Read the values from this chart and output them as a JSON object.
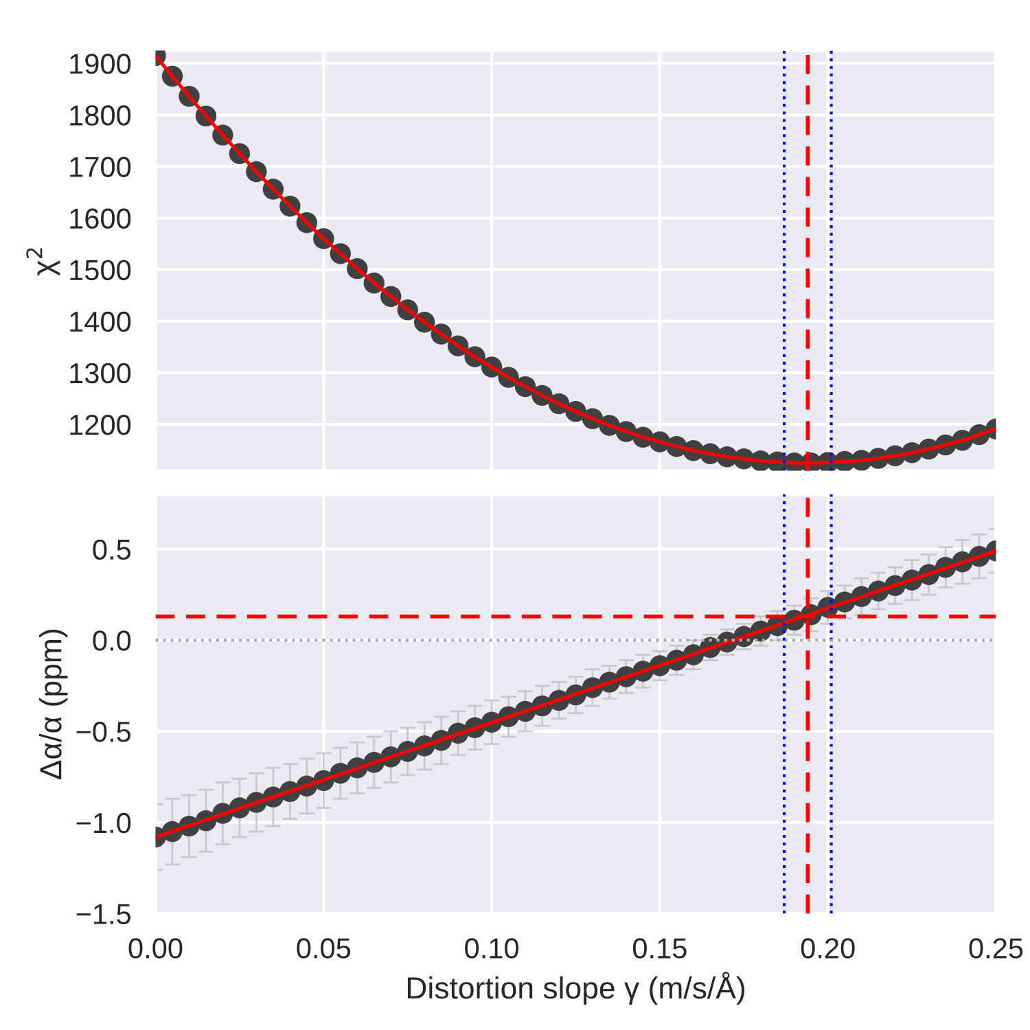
{
  "chart_data": [
    {
      "type": "scatter",
      "ylabel": "χ$^{2}$",
      "x": [
        0,
        0.005,
        0.01,
        0.015,
        0.02,
        0.025,
        0.03,
        0.035,
        0.04,
        0.045,
        0.05,
        0.055,
        0.06,
        0.065,
        0.07,
        0.075,
        0.08,
        0.085,
        0.09,
        0.095,
        0.1,
        0.105,
        0.11,
        0.115,
        0.12,
        0.125,
        0.13,
        0.135,
        0.14,
        0.145,
        0.15,
        0.155,
        0.16,
        0.165,
        0.17,
        0.175,
        0.18,
        0.185,
        0.19,
        0.195,
        0.2,
        0.205,
        0.21,
        0.215,
        0.22,
        0.225,
        0.23,
        0.235,
        0.24,
        0.245,
        0.25
      ],
      "series": [
        {
          "type": "scatter",
          "color": "#404040",
          "marker": "circle",
          "values": [
            1915,
            1875,
            1836,
            1798,
            1761,
            1725,
            1690,
            1656,
            1623,
            1591,
            1560,
            1531,
            1502,
            1474,
            1448,
            1422,
            1398,
            1375,
            1352,
            1331,
            1311,
            1291,
            1273,
            1256,
            1240,
            1225,
            1211,
            1198,
            1186,
            1175,
            1166,
            1157,
            1149,
            1143,
            1137,
            1133,
            1129,
            1127,
            1125,
            1125,
            1126,
            1128,
            1130,
            1134,
            1139,
            1145,
            1152,
            1160,
            1169,
            1180,
            1191
          ]
        },
        {
          "type": "line",
          "color": "#ff0000",
          "line_style": "solid",
          "values": [
            1915,
            1875,
            1836,
            1798,
            1761,
            1725,
            1690,
            1656,
            1623,
            1591,
            1560,
            1531,
            1502,
            1474,
            1448,
            1422,
            1398,
            1375,
            1352,
            1331,
            1311,
            1291,
            1273,
            1256,
            1240,
            1225,
            1211,
            1198,
            1186,
            1175,
            1166,
            1157,
            1149,
            1143,
            1137,
            1133,
            1129,
            1127,
            1125,
            1125,
            1126,
            1128,
            1130,
            1134,
            1139,
            1145,
            1152,
            1160,
            1169,
            1180,
            1191
          ]
        }
      ],
      "xlim": [
        0,
        0.25
      ],
      "xticks": [
        {
          "value": 0,
          "label": null
        },
        {
          "value": 0.05,
          "label": null
        },
        {
          "value": 0.1,
          "label": null
        },
        {
          "value": 0.15,
          "label": null
        },
        {
          "value": 0.2,
          "label": null
        },
        {
          "value": 0.25,
          "label": null
        }
      ],
      "ylim": [
        1110,
        1925
      ],
      "yticks": [
        1200,
        1300,
        1400,
        1500,
        1600,
        1700,
        1800,
        1900
      ],
      "tick_labels": "y",
      "grid": true,
      "ref_lines": [
        {
          "axis": "x",
          "value": 0.194,
          "color": "#ff0000",
          "line_style": "dashed"
        },
        {
          "axis": "x",
          "value": 0.187,
          "color": "#0000ff",
          "line_style": "dotted"
        },
        {
          "axis": "x",
          "value": 0.201,
          "color": "#0000ff",
          "line_style": "dotted"
        }
      ]
    },
    {
      "type": "scatter",
      "ylabel": "Δα/α (ppm)",
      "xlabel": "Distortion slope γ (m/s/Å)",
      "x": [
        0,
        0.005,
        0.01,
        0.015,
        0.02,
        0.025,
        0.03,
        0.035,
        0.04,
        0.045,
        0.05,
        0.055,
        0.06,
        0.065,
        0.07,
        0.075,
        0.08,
        0.085,
        0.09,
        0.095,
        0.1,
        0.105,
        0.11,
        0.115,
        0.12,
        0.125,
        0.13,
        0.135,
        0.14,
        0.145,
        0.15,
        0.155,
        0.16,
        0.165,
        0.17,
        0.175,
        0.18,
        0.185,
        0.19,
        0.195,
        0.2,
        0.205,
        0.21,
        0.215,
        0.22,
        0.225,
        0.23,
        0.235,
        0.24,
        0.245,
        0.25
      ],
      "series": [
        {
          "type": "scatter",
          "color": "#404040",
          "marker": "circle",
          "values": [
            -1.08,
            -1.05,
            -1.02,
            -0.99,
            -0.95,
            -0.92,
            -0.89,
            -0.86,
            -0.83,
            -0.8,
            -0.77,
            -0.73,
            -0.7,
            -0.67,
            -0.64,
            -0.61,
            -0.58,
            -0.55,
            -0.51,
            -0.48,
            -0.45,
            -0.42,
            -0.39,
            -0.36,
            -0.33,
            -0.3,
            -0.26,
            -0.23,
            -0.2,
            -0.17,
            -0.14,
            -0.11,
            -0.08,
            -0.04,
            -0.01,
            0.02,
            0.05,
            0.08,
            0.11,
            0.14,
            0.18,
            0.21,
            0.24,
            0.27,
            0.3,
            0.33,
            0.36,
            0.4,
            0.43,
            0.46,
            0.49
          ],
          "errors": [
            0.18,
            0.18,
            0.17,
            0.17,
            0.17,
            0.16,
            0.16,
            0.16,
            0.15,
            0.15,
            0.15,
            0.14,
            0.14,
            0.14,
            0.14,
            0.13,
            0.13,
            0.13,
            0.12,
            0.12,
            0.12,
            0.11,
            0.11,
            0.11,
            0.1,
            0.1,
            0.1,
            0.09,
            0.09,
            0.09,
            0.08,
            0.08,
            0.08,
            0.07,
            0.07,
            0.07,
            0.08,
            0.08,
            0.08,
            0.09,
            0.09,
            0.09,
            0.1,
            0.1,
            0.1,
            0.11,
            0.11,
            0.11,
            0.12,
            0.12,
            0.12
          ]
        },
        {
          "type": "line",
          "color": "#ff0000",
          "line_style": "solid",
          "x": [
            0,
            0.25
          ],
          "values": [
            -1.08,
            0.49
          ]
        }
      ],
      "xlim": [
        0,
        0.25
      ],
      "xticks": [
        {
          "value": 0,
          "label": "0.00"
        },
        {
          "value": 0.05,
          "label": "0.05"
        },
        {
          "value": 0.1,
          "label": "0.10"
        },
        {
          "value": 0.15,
          "label": "0.15"
        },
        {
          "value": 0.2,
          "label": "0.20"
        },
        {
          "value": 0.25,
          "label": "0.25"
        }
      ],
      "ylim": [
        -1.5,
        0.8
      ],
      "yticks": [
        {
          "value": -1.5,
          "label": "−1.5"
        },
        {
          "value": -1.0,
          "label": "−1.0"
        },
        {
          "value": -0.5,
          "label": "−0.5"
        },
        {
          "value": 0,
          "label": "0.0"
        },
        {
          "value": 0.5,
          "label": "0.5"
        }
      ],
      "grid": true,
      "ref_lines": [
        {
          "axis": "x",
          "value": 0.194,
          "color": "#ff0000",
          "line_style": "dashed"
        },
        {
          "axis": "x",
          "value": 0.187,
          "color": "#0000ff",
          "line_style": "dotted"
        },
        {
          "axis": "x",
          "value": 0.201,
          "color": "#0000ff",
          "line_style": "dotted"
        },
        {
          "axis": "y",
          "value": 0.13,
          "color": "#ff0000",
          "line_style": "dashed"
        },
        {
          "axis": "y",
          "value": 0,
          "color": "#aaaaaa",
          "line_style": "dotted"
        }
      ]
    }
  ]
}
